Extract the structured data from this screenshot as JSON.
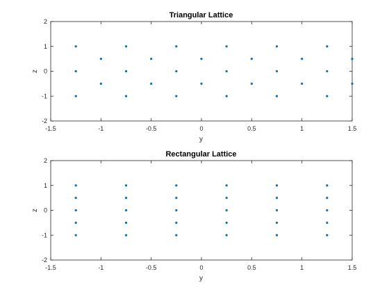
{
  "figure": {
    "background": "#ffffff",
    "axes_color": "#262626",
    "marker_color": "#0072bd"
  },
  "chart_data": [
    {
      "type": "scatter",
      "title": "Triangular Lattice",
      "xlabel": "y",
      "ylabel": "z",
      "xlim": [
        -1.5,
        1.5
      ],
      "ylim": [
        -2,
        2
      ],
      "xticks": [
        -1.5,
        -1,
        -0.5,
        0,
        0.5,
        1,
        1.5
      ],
      "xtick_labels": [
        "-1.5",
        "-1",
        "-0.5",
        "0",
        "0.5",
        "1",
        "1.5"
      ],
      "yticks": [
        -2,
        -1,
        0,
        1,
        2
      ],
      "ytick_labels": [
        "-2",
        "-1",
        "0",
        "1",
        "2"
      ],
      "grid": false,
      "marker": "point",
      "points": [
        [
          -1.25,
          1
        ],
        [
          -1.25,
          0
        ],
        [
          -1.25,
          -1
        ],
        [
          -1.0,
          0.5
        ],
        [
          -1.0,
          -0.5
        ],
        [
          -0.75,
          1
        ],
        [
          -0.75,
          0
        ],
        [
          -0.75,
          -1
        ],
        [
          -0.5,
          0.5
        ],
        [
          -0.5,
          -0.5
        ],
        [
          -0.25,
          1
        ],
        [
          -0.25,
          0
        ],
        [
          -0.25,
          -1
        ],
        [
          0,
          0.5
        ],
        [
          0,
          -0.5
        ],
        [
          0.25,
          1
        ],
        [
          0.25,
          0
        ],
        [
          0.25,
          -1
        ],
        [
          0.5,
          0.5
        ],
        [
          0.5,
          -0.5
        ],
        [
          0.75,
          1
        ],
        [
          0.75,
          0
        ],
        [
          0.75,
          -1
        ],
        [
          1.0,
          0.5
        ],
        [
          1.0,
          -0.5
        ],
        [
          1.25,
          1
        ],
        [
          1.25,
          0
        ],
        [
          1.25,
          -1
        ],
        [
          1.5,
          0.5
        ],
        [
          1.5,
          -0.5
        ]
      ]
    },
    {
      "type": "scatter",
      "title": "Rectangular Lattice",
      "xlabel": "y",
      "ylabel": "z",
      "xlim": [
        -1.5,
        1.5
      ],
      "ylim": [
        -2,
        2
      ],
      "xticks": [
        -1.5,
        -1,
        -0.5,
        0,
        0.5,
        1,
        1.5
      ],
      "xtick_labels": [
        "-1.5",
        "-1",
        "-0.5",
        "0",
        "0.5",
        "1",
        "1.5"
      ],
      "yticks": [
        -2,
        -1,
        0,
        1,
        2
      ],
      "ytick_labels": [
        "-2",
        "-1",
        "0",
        "1",
        "2"
      ],
      "grid": false,
      "marker": "point",
      "points": [
        [
          -1.25,
          1
        ],
        [
          -1.25,
          0.5
        ],
        [
          -1.25,
          0
        ],
        [
          -1.25,
          -0.5
        ],
        [
          -1.25,
          -1
        ],
        [
          -0.75,
          1
        ],
        [
          -0.75,
          0.5
        ],
        [
          -0.75,
          0
        ],
        [
          -0.75,
          -0.5
        ],
        [
          -0.75,
          -1
        ],
        [
          -0.25,
          1
        ],
        [
          -0.25,
          0.5
        ],
        [
          -0.25,
          0
        ],
        [
          -0.25,
          -0.5
        ],
        [
          -0.25,
          -1
        ],
        [
          0.25,
          1
        ],
        [
          0.25,
          0.5
        ],
        [
          0.25,
          0
        ],
        [
          0.25,
          -0.5
        ],
        [
          0.25,
          -1
        ],
        [
          0.75,
          1
        ],
        [
          0.75,
          0.5
        ],
        [
          0.75,
          0
        ],
        [
          0.75,
          -0.5
        ],
        [
          0.75,
          -1
        ],
        [
          1.25,
          1
        ],
        [
          1.25,
          0.5
        ],
        [
          1.25,
          0
        ],
        [
          1.25,
          -0.5
        ],
        [
          1.25,
          -1
        ]
      ]
    }
  ]
}
